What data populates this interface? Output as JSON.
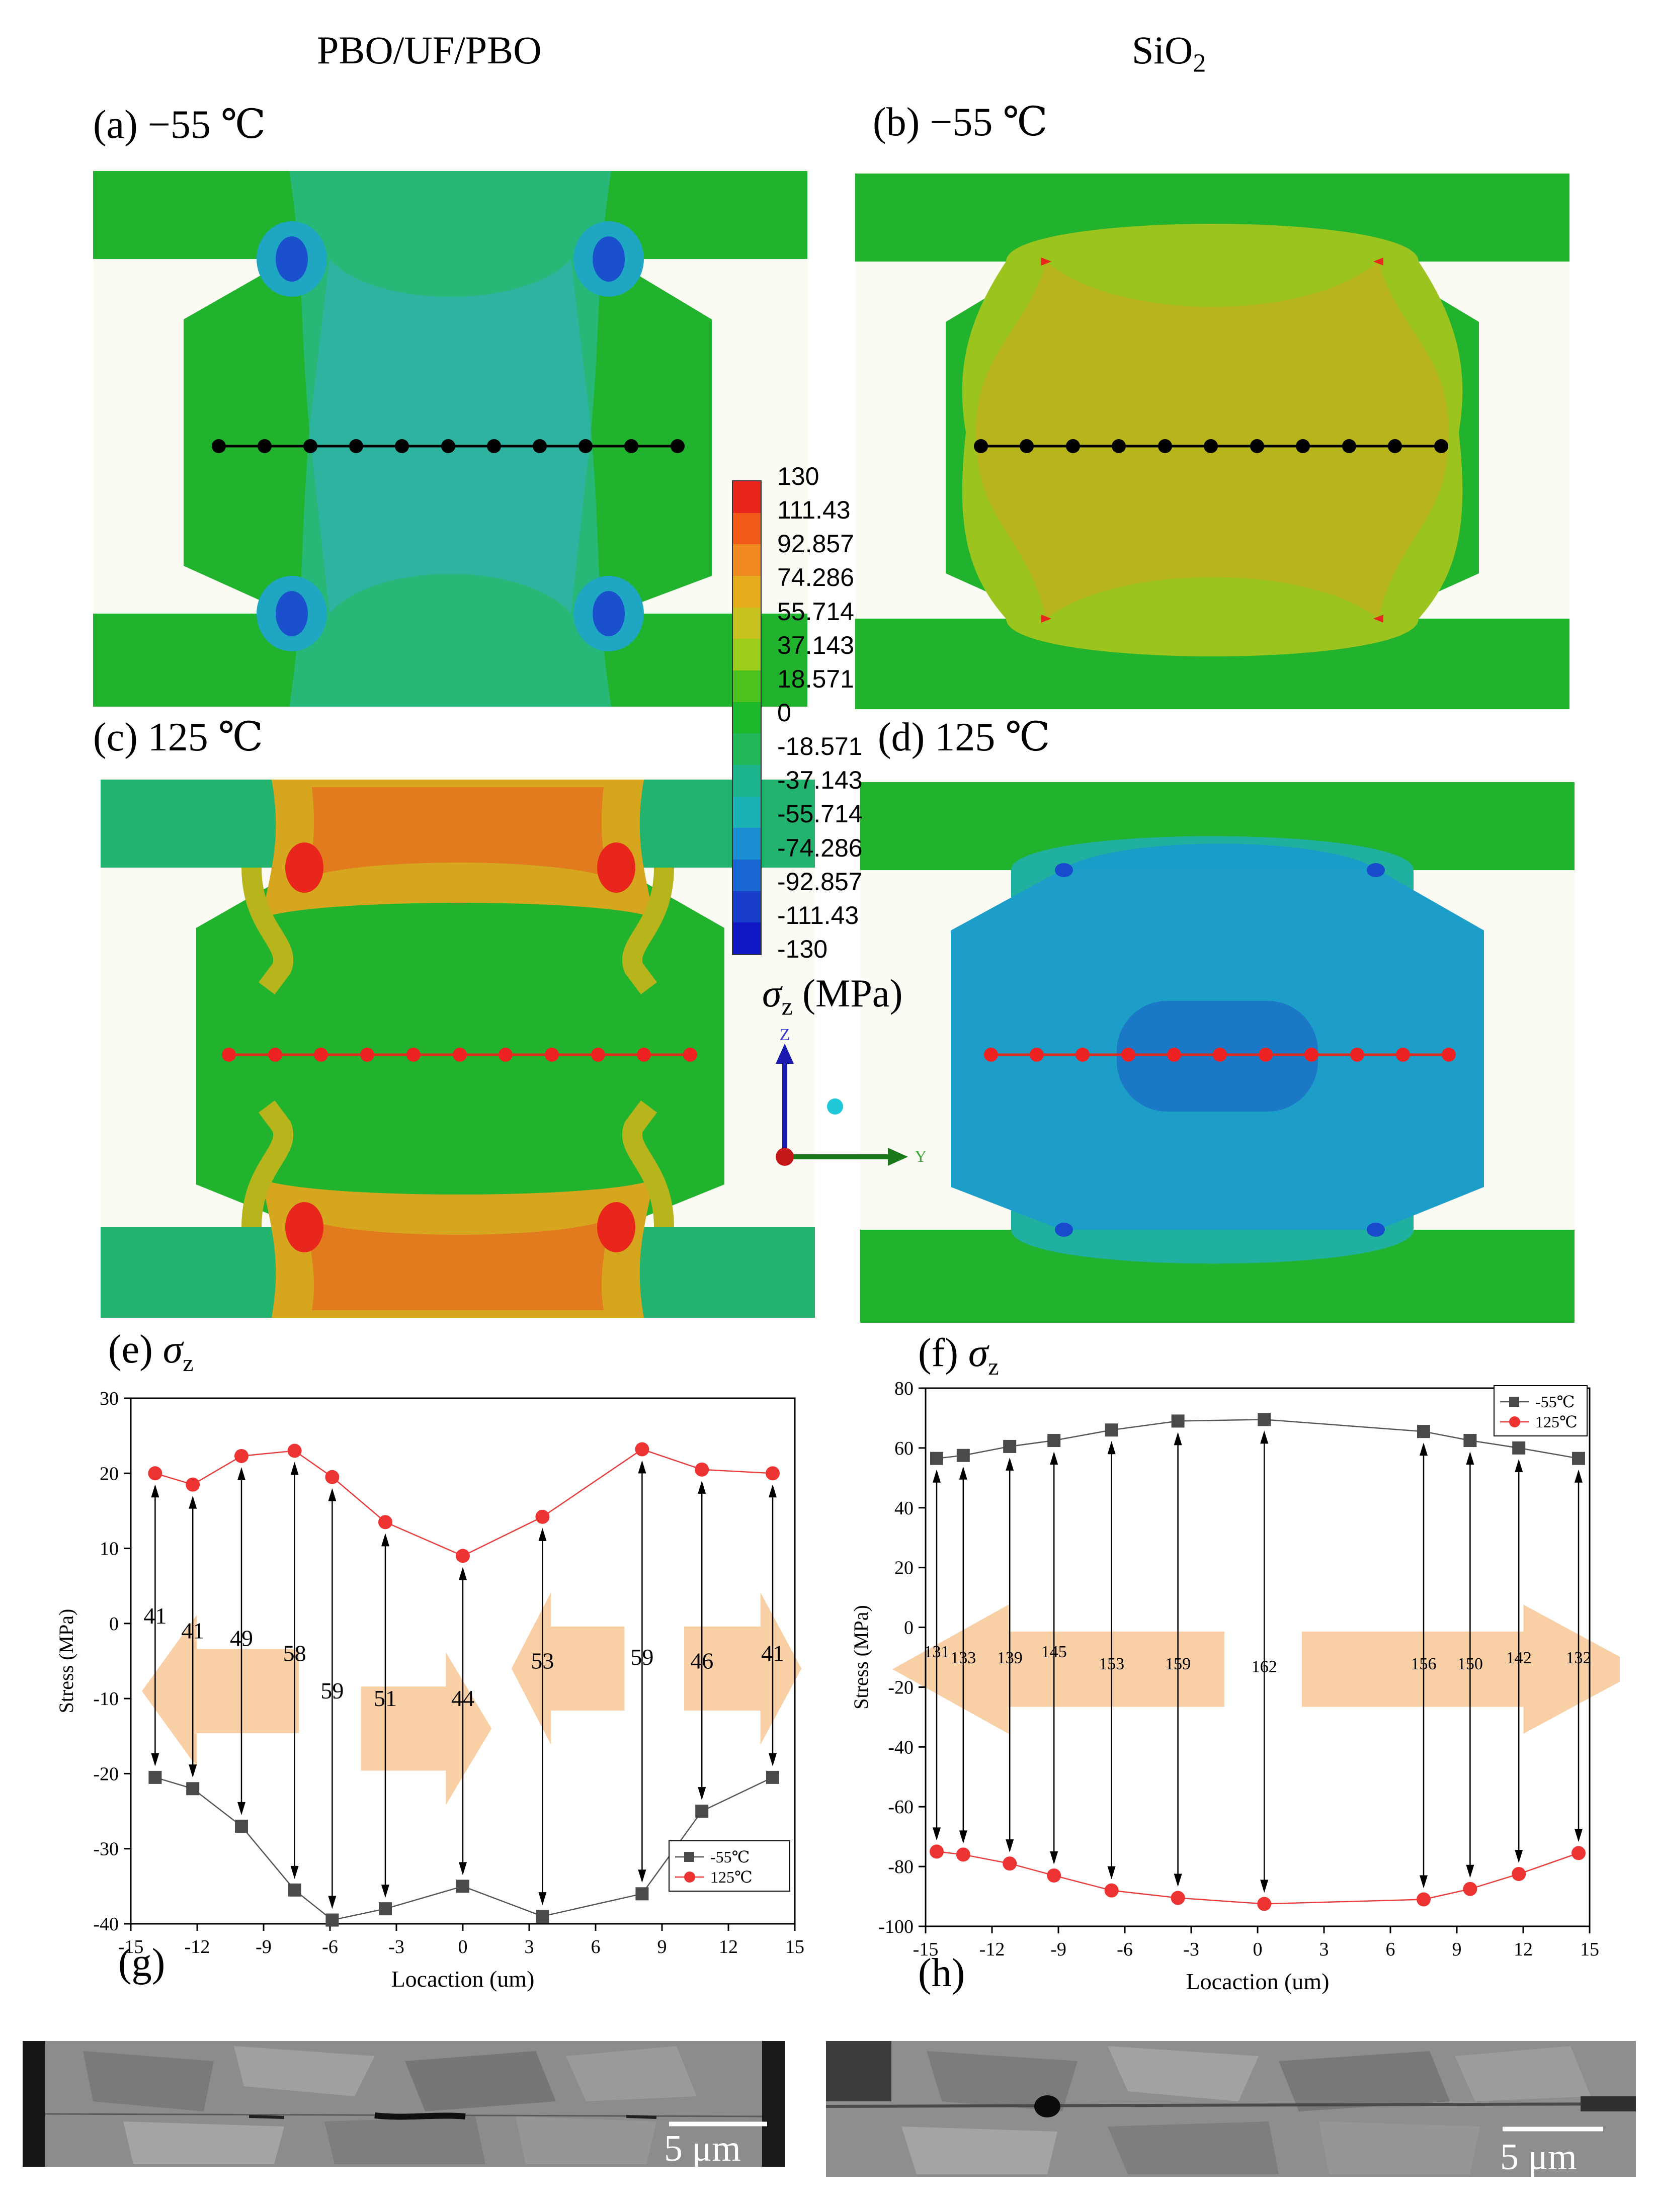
{
  "columns": {
    "left": "PBO/UF/PBO",
    "right": "SiO",
    "right_sub": "2"
  },
  "panels": {
    "a": "(a) −55 ℃",
    "b": "(b) −55 ℃",
    "c": "(c) 125 ℃",
    "d": "(d) 125 ℃",
    "e": "(e)",
    "f": "(f)",
    "g": "(g)",
    "h": "(h)"
  },
  "sigma": {
    "symbol": "σ",
    "sub": "z"
  },
  "colorbar": {
    "labels": [
      "130",
      "111.43",
      "92.857",
      "74.286",
      "55.714",
      "37.143",
      "18.571",
      "0",
      "-18.571",
      "-37.143",
      "-55.714",
      "-74.286",
      "-92.857",
      "-111.43",
      "-130"
    ],
    "colors": [
      "#e8261c",
      "#f25a1a",
      "#f08a20",
      "#e6ac1e",
      "#c8c21e",
      "#9ccc1c",
      "#4cc21e",
      "#1ab82a",
      "#22b85a",
      "#1cb48c",
      "#1ab2b4",
      "#1a8ed0",
      "#1866d2",
      "#1a3ecc",
      "#1018c4"
    ],
    "unit_label": "(MPa)",
    "axis_z": "Z",
    "axis_y": "Y"
  },
  "scale_bar": {
    "left": "5 μm",
    "right": "5 μm"
  },
  "chart_data": [
    {
      "type": "line",
      "panel": "e",
      "xlabel": "Locaction (um)",
      "ylabel": "Stress (MPa)",
      "xlim": [
        -15,
        15
      ],
      "ylim": [
        -40,
        30
      ],
      "xticks": [
        -15,
        -12,
        -9,
        -6,
        -3,
        0,
        3,
        6,
        9,
        12,
        15
      ],
      "yticks": [
        -40,
        -30,
        -20,
        -10,
        0,
        10,
        20,
        30
      ],
      "series": [
        {
          "name": "-55℃",
          "color": "#555555",
          "marker": "square",
          "x": [
            -13.9,
            -12.2,
            -10.0,
            -7.6,
            -5.9,
            -3.5,
            0,
            3.6,
            8.1,
            10.8,
            14.0
          ],
          "y": [
            -20.5,
            -22,
            -27,
            -35.5,
            -39.5,
            -38,
            -35,
            -39,
            -36,
            -25,
            -20.5
          ]
        },
        {
          "name": "125℃",
          "color": "#e83c3c",
          "marker": "circle",
          "x": [
            -13.9,
            -12.2,
            -10.0,
            -7.6,
            -5.9,
            -3.5,
            0,
            3.6,
            8.1,
            10.8,
            14.0
          ],
          "y": [
            20,
            18.5,
            22.3,
            23,
            19.5,
            13.5,
            9,
            14.2,
            23.2,
            20.5,
            20
          ]
        }
      ],
      "differences": [
        "41",
        "41",
        "49",
        "58",
        "59",
        "51",
        "44",
        "53",
        "59",
        "46",
        "41"
      ],
      "legend": "bottom-right"
    },
    {
      "type": "line",
      "panel": "f",
      "xlabel": "Locaction (um)",
      "ylabel": "Stress (MPa)",
      "xlim": [
        -15,
        15
      ],
      "ylim": [
        -100,
        80
      ],
      "xticks": [
        -15,
        -12,
        -9,
        -6,
        -3,
        0,
        3,
        6,
        9,
        12,
        15
      ],
      "yticks": [
        -100,
        -80,
        -60,
        -40,
        -20,
        0,
        20,
        40,
        60,
        80
      ],
      "series": [
        {
          "name": "-55℃",
          "color": "#555555",
          "marker": "square",
          "x": [
            -14.5,
            -13.3,
            -11.2,
            -9.2,
            -6.6,
            -3.6,
            0.3,
            7.5,
            9.6,
            11.8,
            14.5
          ],
          "y": [
            56.5,
            57.5,
            60.5,
            62.5,
            66,
            69,
            69.5,
            65.5,
            62.5,
            60,
            56.5
          ]
        },
        {
          "name": "125℃",
          "color": "#e83c3c",
          "marker": "circle",
          "x": [
            -14.5,
            -13.3,
            -11.2,
            -9.2,
            -6.6,
            -3.6,
            0.3,
            7.5,
            9.6,
            11.8,
            14.5
          ],
          "y": [
            -75,
            -76,
            -79,
            -83,
            -88,
            -90.5,
            -92.5,
            -91,
            -87.5,
            -82.5,
            -75.5
          ]
        }
      ],
      "differences": [
        "131",
        "133",
        "139",
        "145",
        "153",
        "159",
        "162",
        "156",
        "150",
        "142",
        "132"
      ],
      "legend": "top-right"
    }
  ]
}
